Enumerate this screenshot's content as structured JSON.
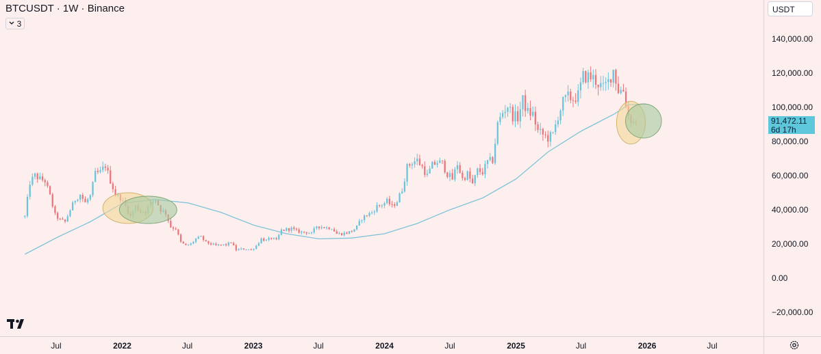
{
  "symbol": {
    "title": "BTCUSDT · 1W · Binance",
    "collapsed_indicators_count": "3"
  },
  "toolbar": {
    "currency": "USDT"
  },
  "price_label": {
    "price": "91,472.11",
    "countdown": "6d 17h",
    "color": "#5fc7dc"
  },
  "icons": {
    "chevron": "chevron-down-icon",
    "logo": "tradingview-logo-icon",
    "settings": "gear-icon"
  },
  "colors": {
    "background": "#fcefee",
    "up_candle": "#6cc3d9",
    "down_candle": "#e8767a",
    "moving_average": "#7ec3d8",
    "highlight_yellow": "#f3d79a",
    "highlight_green": "#a7caa0"
  },
  "chart_data": {
    "type": "candlestick",
    "title": "",
    "xlabel": "",
    "ylabel": "",
    "ylim": [
      -30000,
      150000
    ],
    "xlim": [
      "2021-04-05",
      "2026-11-16"
    ],
    "grid": false,
    "y_ticks": [
      {
        "value": 140000,
        "label": "140,000.00"
      },
      {
        "value": 120000,
        "label": "120,000.00"
      },
      {
        "value": 100000,
        "label": "100,000.00"
      },
      {
        "value": 80000,
        "label": "80,000.00"
      },
      {
        "value": 60000,
        "label": "60,000.00"
      },
      {
        "value": 40000,
        "label": "40,000.00"
      },
      {
        "value": 20000,
        "label": "20,000.00"
      },
      {
        "value": 0,
        "label": "0.00"
      },
      {
        "value": -20000,
        "label": "−20,000.00"
      }
    ],
    "x_ticks": [
      {
        "date": "2021-07-01",
        "label": "Jul",
        "bold": false
      },
      {
        "date": "2022-01-01",
        "label": "2022",
        "bold": true
      },
      {
        "date": "2022-07-01",
        "label": "Jul",
        "bold": false
      },
      {
        "date": "2023-01-01",
        "label": "2023",
        "bold": true
      },
      {
        "date": "2023-07-01",
        "label": "Jul",
        "bold": false
      },
      {
        "date": "2024-01-01",
        "label": "2024",
        "bold": true
      },
      {
        "date": "2024-07-01",
        "label": "Jul",
        "bold": false
      },
      {
        "date": "2025-01-01",
        "label": "2025",
        "bold": true
      },
      {
        "date": "2025-07-01",
        "label": "Jul",
        "bold": false
      },
      {
        "date": "2026-01-01",
        "label": "2026",
        "bold": true
      },
      {
        "date": "2026-07-01",
        "label": "Jul",
        "bold": false
      }
    ],
    "price_path": [
      [
        "2021-04-05",
        36000
      ],
      [
        "2021-04-19",
        56000
      ],
      [
        "2021-05-03",
        60000
      ],
      [
        "2021-05-17",
        58000
      ],
      [
        "2021-05-31",
        57000
      ],
      [
        "2021-06-14",
        48000
      ],
      [
        "2021-06-28",
        37000
      ],
      [
        "2021-07-12",
        34000
      ],
      [
        "2021-07-26",
        33000
      ],
      [
        "2021-08-09",
        40000
      ],
      [
        "2021-08-23",
        46000
      ],
      [
        "2021-09-06",
        49000
      ],
      [
        "2021-09-20",
        44000
      ],
      [
        "2021-10-04",
        48000
      ],
      [
        "2021-10-18",
        61000
      ],
      [
        "2021-11-01",
        62000
      ],
      [
        "2021-11-15",
        66000
      ],
      [
        "2021-11-29",
        57000
      ],
      [
        "2021-12-13",
        49000
      ],
      [
        "2021-12-27",
        47000
      ],
      [
        "2022-01-10",
        42000
      ],
      [
        "2022-01-24",
        36000
      ],
      [
        "2022-02-07",
        42000
      ],
      [
        "2022-02-21",
        39000
      ],
      [
        "2022-03-07",
        39000
      ],
      [
        "2022-03-21",
        44000
      ],
      [
        "2022-04-04",
        46000
      ],
      [
        "2022-04-18",
        40000
      ],
      [
        "2022-05-02",
        38000
      ],
      [
        "2022-05-16",
        30000
      ],
      [
        "2022-05-30",
        29000
      ],
      [
        "2022-06-13",
        21000
      ],
      [
        "2022-06-27",
        19000
      ],
      [
        "2022-07-11",
        20000
      ],
      [
        "2022-07-25",
        23000
      ],
      [
        "2022-08-08",
        24000
      ],
      [
        "2022-08-22",
        21000
      ],
      [
        "2022-09-05",
        20000
      ],
      [
        "2022-09-19",
        19000
      ],
      [
        "2022-10-03",
        19500
      ],
      [
        "2022-10-17",
        19500
      ],
      [
        "2022-10-31",
        21000
      ],
      [
        "2022-11-14",
        16500
      ],
      [
        "2022-11-28",
        17000
      ],
      [
        "2022-12-12",
        17000
      ],
      [
        "2022-12-26",
        16500
      ],
      [
        "2023-01-09",
        19000
      ],
      [
        "2023-01-23",
        23000
      ],
      [
        "2023-02-06",
        22000
      ],
      [
        "2023-02-20",
        23500
      ],
      [
        "2023-03-06",
        22000
      ],
      [
        "2023-03-20",
        28000
      ],
      [
        "2023-04-03",
        28500
      ],
      [
        "2023-04-17",
        29000
      ],
      [
        "2023-05-01",
        27500
      ],
      [
        "2023-05-15",
        27000
      ],
      [
        "2023-05-29",
        27000
      ],
      [
        "2023-06-12",
        26000
      ],
      [
        "2023-06-26",
        30500
      ],
      [
        "2023-07-10",
        30000
      ],
      [
        "2023-07-24",
        29500
      ],
      [
        "2023-08-07",
        29500
      ],
      [
        "2023-08-21",
        26000
      ],
      [
        "2023-09-04",
        26000
      ],
      [
        "2023-09-18",
        26500
      ],
      [
        "2023-10-02",
        27500
      ],
      [
        "2023-10-16",
        30000
      ],
      [
        "2023-10-30",
        35000
      ],
      [
        "2023-11-13",
        37000
      ],
      [
        "2023-11-27",
        38500
      ],
      [
        "2023-12-11",
        42000
      ],
      [
        "2023-12-25",
        43000
      ],
      [
        "2024-01-08",
        45000
      ],
      [
        "2024-01-22",
        42000
      ],
      [
        "2024-02-05",
        45000
      ],
      [
        "2024-02-19",
        52000
      ],
      [
        "2024-03-04",
        65000
      ],
      [
        "2024-03-18",
        68000
      ],
      [
        "2024-04-01",
        69000
      ],
      [
        "2024-04-15",
        65000
      ],
      [
        "2024-04-29",
        60000
      ],
      [
        "2024-05-13",
        66000
      ],
      [
        "2024-05-27",
        68000
      ],
      [
        "2024-06-10",
        67000
      ],
      [
        "2024-06-24",
        61000
      ],
      [
        "2024-07-08",
        58000
      ],
      [
        "2024-07-22",
        67000
      ],
      [
        "2024-08-05",
        58000
      ],
      [
        "2024-08-19",
        61000
      ],
      [
        "2024-09-02",
        55000
      ],
      [
        "2024-09-16",
        63000
      ],
      [
        "2024-09-30",
        62000
      ],
      [
        "2024-10-14",
        68000
      ],
      [
        "2024-10-28",
        69000
      ],
      [
        "2024-11-11",
        90000
      ],
      [
        "2024-11-25",
        97000
      ],
      [
        "2024-12-09",
        101000
      ],
      [
        "2024-12-23",
        95000
      ],
      [
        "2025-01-06",
        94000
      ],
      [
        "2025-01-20",
        104000
      ],
      [
        "2025-02-03",
        97000
      ],
      [
        "2025-02-17",
        96000
      ],
      [
        "2025-03-03",
        86000
      ],
      [
        "2025-03-17",
        84000
      ],
      [
        "2025-03-31",
        82000
      ],
      [
        "2025-04-14",
        84000
      ],
      [
        "2025-04-28",
        95000
      ],
      [
        "2025-05-12",
        103000
      ],
      [
        "2025-05-26",
        106000
      ],
      [
        "2025-06-09",
        105000
      ],
      [
        "2025-06-23",
        107000
      ],
      [
        "2025-07-07",
        118000
      ],
      [
        "2025-07-21",
        118000
      ],
      [
        "2025-08-04",
        117000
      ],
      [
        "2025-08-18",
        114000
      ],
      [
        "2025-09-01",
        111000
      ],
      [
        "2025-09-15",
        115000
      ],
      [
        "2025-09-29",
        122000
      ],
      [
        "2025-10-13",
        110000
      ],
      [
        "2025-10-27",
        110000
      ],
      [
        "2025-11-10",
        95000
      ],
      [
        "2025-11-24",
        91000
      ],
      [
        "2025-12-01",
        91472
      ]
    ],
    "moving_average": [
      [
        "2021-04-05",
        14000
      ],
      [
        "2021-07-05",
        24000
      ],
      [
        "2021-10-04",
        33000
      ],
      [
        "2022-01-03",
        44000
      ],
      [
        "2022-04-04",
        46000
      ],
      [
        "2022-07-04",
        44000
      ],
      [
        "2022-10-03",
        38500
      ],
      [
        "2023-01-02",
        31000
      ],
      [
        "2023-04-03",
        26000
      ],
      [
        "2023-07-03",
        23000
      ],
      [
        "2023-10-02",
        23500
      ],
      [
        "2024-01-01",
        26000
      ],
      [
        "2024-04-01",
        32000
      ],
      [
        "2024-07-01",
        40000
      ],
      [
        "2024-10-01",
        47000
      ],
      [
        "2025-01-01",
        58000
      ],
      [
        "2025-04-01",
        74000
      ],
      [
        "2025-07-01",
        86000
      ],
      [
        "2025-10-01",
        96000
      ],
      [
        "2025-11-10",
        101500
      ],
      [
        "2025-12-29",
        102000
      ]
    ],
    "annotations": [
      {
        "type": "ellipse",
        "color": "yellow",
        "center": [
          "2022-01-17",
          41000
        ],
        "half_width_days": 70,
        "half_height": 9000
      },
      {
        "type": "ellipse",
        "color": "green",
        "center": [
          "2022-03-14",
          40000
        ],
        "half_width_days": 80,
        "half_height": 8000
      },
      {
        "type": "ellipse",
        "color": "yellow",
        "center": [
          "2025-11-17",
          91000
        ],
        "half_width_days": 40,
        "half_height": 12500
      },
      {
        "type": "ellipse",
        "color": "green",
        "center": [
          "2025-12-22",
          92000
        ],
        "half_width_days": 50,
        "half_height": 10000
      }
    ]
  }
}
